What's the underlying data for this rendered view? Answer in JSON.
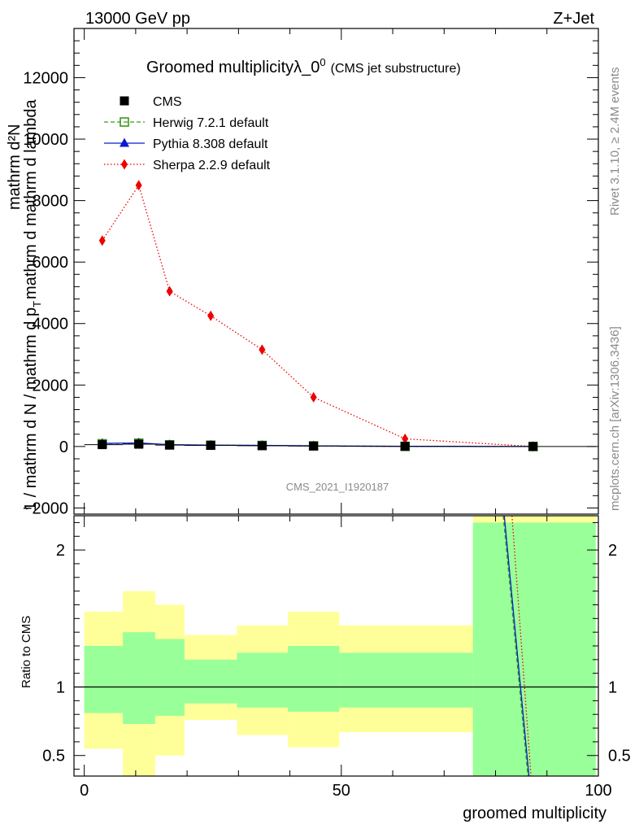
{
  "header": {
    "left": "13000 GeV pp",
    "right": "Z+Jet"
  },
  "side_labels": {
    "rivet": "Rivet 3.1.10, ≥ 2.4M events",
    "mcplots": "mcplots.cern.ch [arXiv:1306.3436]"
  },
  "chart_data": [
    {
      "type": "line",
      "title": "Groomed multiplicityλ_0",
      "title_sup": "0",
      "subtitle": "(CMS jet substructure)",
      "ylabel": "1 / mathrm d N / mathrm d p_T mathrm d mathrm d lambda",
      "ylabel_lines": [
        "mathrm d²N",
        "1 / mathrm d N / mathrm d p",
        "T",
        "mathrm d mathrm d lambda"
      ],
      "ylim": [
        -2200,
        13600
      ],
      "xlim": [
        -2,
        100
      ],
      "yticks": [
        -2000,
        0,
        2000,
        4000,
        6000,
        8000,
        10000,
        12000
      ],
      "ytick_labels": [
        "−2000",
        "0",
        "2000",
        "4000",
        "6000",
        "8000",
        "10000",
        "12000"
      ],
      "watermark": "CMS_2021_I1920187",
      "legend": [
        {
          "name": "CMS",
          "color": "#000000",
          "marker": "square-filled",
          "line": "none"
        },
        {
          "name": "Herwig 7.2.1 default",
          "color": "#3a9a1a",
          "marker": "square-open",
          "line": "dashed"
        },
        {
          "name": "Pythia 8.308 default",
          "color": "#0a1acc",
          "marker": "triangle",
          "line": "solid"
        },
        {
          "name": "Sherpa 2.2.9 default",
          "color": "#ee0000",
          "marker": "diamond",
          "line": "dotted"
        }
      ],
      "bins": [
        {
          "x": 3.5,
          "xlo": 0,
          "xhi": 7.5
        },
        {
          "x": 10.6,
          "xlo": 7.5,
          "xhi": 13.8
        },
        {
          "x": 16.6,
          "xlo": 13.8,
          "xhi": 19.5
        },
        {
          "x": 24.6,
          "xlo": 19.5,
          "xhi": 29.7
        },
        {
          "x": 34.6,
          "xlo": 29.7,
          "xhi": 39.6
        },
        {
          "x": 44.6,
          "xlo": 39.6,
          "xhi": 49.6
        },
        {
          "x": 62.4,
          "xlo": 49.6,
          "xhi": 75.6
        },
        {
          "x": 87.3,
          "xlo": 75.6,
          "xhi": 99.5
        }
      ],
      "series": [
        {
          "name": "CMS",
          "values": [
            60,
            75,
            45,
            35,
            25,
            15,
            5,
            1
          ]
        },
        {
          "name": "Herwig 7.2.1 default",
          "values": [
            90,
            110,
            55,
            45,
            35,
            20,
            5,
            0
          ]
        },
        {
          "name": "Pythia 8.308 default",
          "values": [
            100,
            115,
            60,
            45,
            35,
            20,
            5,
            0
          ]
        },
        {
          "name": "Sherpa 2.2.9 default",
          "values": [
            6700,
            8500,
            5050,
            4250,
            3150,
            1600,
            250,
            0
          ]
        }
      ]
    },
    {
      "type": "line",
      "title": "",
      "ylabel": "Ratio to CMS",
      "xlabel": "groomed multiplicity",
      "ylim": [
        0.35,
        2.25
      ],
      "xlim": [
        -2,
        100
      ],
      "yticks": [
        0.5,
        1,
        2
      ],
      "ytick_labels": [
        "0.5",
        "1",
        "2"
      ],
      "xticks": [
        0,
        50,
        100
      ],
      "xtick_labels": [
        "0",
        "50",
        "100"
      ],
      "bands": [
        {
          "xlo": 0,
          "xhi": 7.5,
          "green": [
            0.81,
            1.3
          ],
          "yellow": [
            0.55,
            1.55
          ]
        },
        {
          "xlo": 7.5,
          "xhi": 13.8,
          "green": [
            0.73,
            1.4
          ],
          "yellow": [
            0.35,
            1.7
          ]
        },
        {
          "xlo": 13.8,
          "xhi": 19.5,
          "green": [
            0.79,
            1.35
          ],
          "yellow": [
            0.5,
            1.6
          ]
        },
        {
          "xlo": 19.5,
          "xhi": 29.7,
          "green": [
            0.88,
            1.2
          ],
          "yellow": [
            0.76,
            1.38
          ]
        },
        {
          "xlo": 29.7,
          "xhi": 39.6,
          "green": [
            0.85,
            1.25
          ],
          "yellow": [
            0.65,
            1.45
          ]
        },
        {
          "xlo": 39.6,
          "xhi": 49.6,
          "green": [
            0.82,
            1.3
          ],
          "yellow": [
            0.56,
            1.55
          ]
        },
        {
          "xlo": 49.6,
          "xhi": 75.6,
          "green": [
            0.85,
            1.25
          ],
          "yellow": [
            0.67,
            1.45
          ]
        },
        {
          "xlo": 75.6,
          "xhi": 99.5,
          "green": [
            0.35,
            2.2
          ],
          "yellow": [
            0.35,
            2.25
          ]
        }
      ],
      "ratio_lines": [
        {
          "name": "Herwig 7.2.1 default",
          "color": "#3a9a1a",
          "dash": "5,3",
          "points": [
            [
              81.5,
              2.25
            ],
            [
              86.3,
              0.35
            ]
          ]
        },
        {
          "name": "Pythia 8.308 default",
          "color": "#0a1acc",
          "dash": "",
          "points": [
            [
              81.7,
              2.25
            ],
            [
              86.5,
              0.35
            ]
          ]
        },
        {
          "name": "Sherpa 2.2.9 default",
          "color": "#ee0000",
          "dash": "1.5,2.5",
          "points": [
            [
              83.2,
              2.25
            ],
            [
              86.9,
              0.35
            ]
          ]
        }
      ]
    }
  ]
}
